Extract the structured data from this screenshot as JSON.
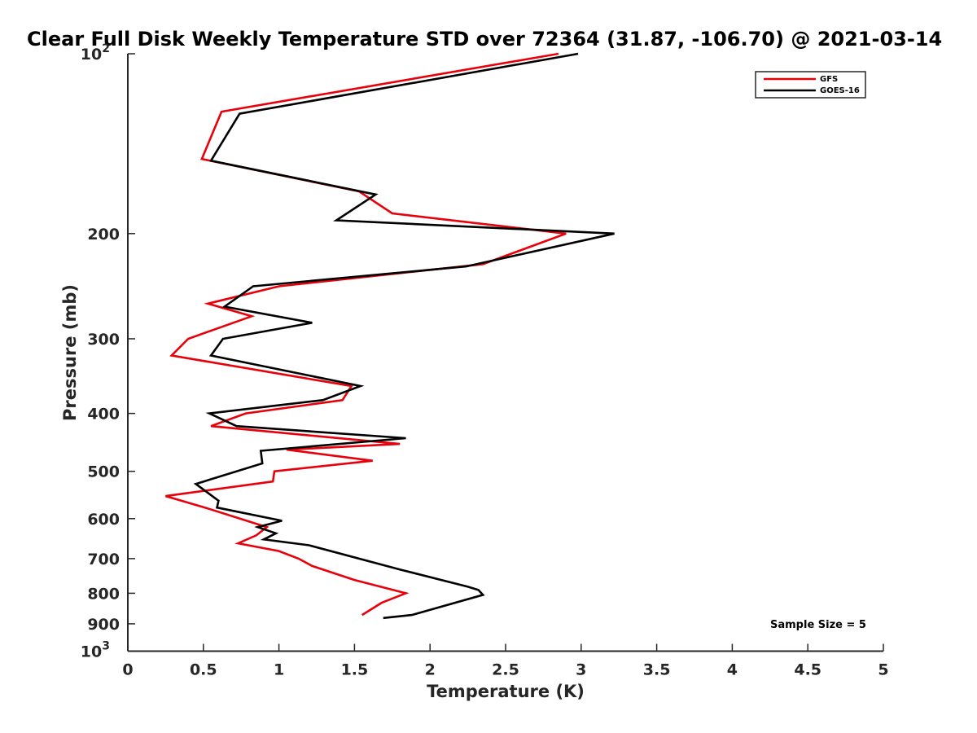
{
  "chart_data": {
    "type": "line",
    "title": "Clear Full Disk Weekly Temperature STD over 72364 (31.87, -106.70) @ 2021-03-14",
    "xlabel": "Temperature (K)",
    "ylabel": "Pressure (mb)",
    "xlim": [
      0,
      5
    ],
    "ylim": [
      100,
      1000
    ],
    "y_scale": "log",
    "y_reversed": true,
    "x_ticks": [
      0,
      0.5,
      1,
      1.5,
      2,
      2.5,
      3,
      3.5,
      4,
      4.5,
      5
    ],
    "x_tick_labels": [
      "0",
      "0.5",
      "1",
      "1.5",
      "2",
      "2.5",
      "3",
      "3.5",
      "4",
      "4.5",
      "5"
    ],
    "y_ticks": [
      100,
      200,
      300,
      400,
      500,
      600,
      700,
      800,
      900,
      1000
    ],
    "y_tick_labels": [
      "10^2",
      "200",
      "300",
      "400",
      "500",
      "600",
      "700",
      "800",
      "900",
      "10^3"
    ],
    "legend_position": "top-right",
    "annotation": "Sample Size = 5",
    "series": [
      {
        "name": "GFS",
        "color": "#e8000b",
        "points": [
          [
            2.85,
            100
          ],
          [
            0.62,
            125
          ],
          [
            0.49,
            150
          ],
          [
            1.53,
            170
          ],
          [
            1.75,
            185
          ],
          [
            2.9,
            200
          ],
          [
            2.35,
            225
          ],
          [
            1.0,
            245
          ],
          [
            0.53,
            262
          ],
          [
            0.82,
            275
          ],
          [
            0.4,
            300
          ],
          [
            0.29,
            320
          ],
          [
            1.48,
            360
          ],
          [
            1.42,
            380
          ],
          [
            0.78,
            400
          ],
          [
            0.55,
            420
          ],
          [
            1.8,
            450
          ],
          [
            1.05,
            460
          ],
          [
            1.62,
            480
          ],
          [
            0.97,
            500
          ],
          [
            0.96,
            520
          ],
          [
            0.25,
            550
          ],
          [
            0.51,
            575
          ],
          [
            0.92,
            620
          ],
          [
            0.85,
            640
          ],
          [
            0.73,
            660
          ],
          [
            1.0,
            680
          ],
          [
            1.13,
            700
          ],
          [
            1.22,
            720
          ],
          [
            1.5,
            760
          ],
          [
            1.84,
            800
          ],
          [
            1.68,
            830
          ],
          [
            1.55,
            870
          ]
        ]
      },
      {
        "name": "GOES-16",
        "color": "#000000",
        "points": [
          [
            2.98,
            100
          ],
          [
            0.74,
            126
          ],
          [
            0.55,
            151
          ],
          [
            1.64,
            172
          ],
          [
            1.38,
            190
          ],
          [
            3.22,
            200
          ],
          [
            2.24,
            227
          ],
          [
            0.83,
            245
          ],
          [
            0.64,
            265
          ],
          [
            1.22,
            282
          ],
          [
            0.63,
            300
          ],
          [
            0.55,
            320
          ],
          [
            1.54,
            360
          ],
          [
            1.29,
            380
          ],
          [
            0.54,
            400
          ],
          [
            0.72,
            420
          ],
          [
            1.84,
            440
          ],
          [
            0.88,
            462
          ],
          [
            0.89,
            485
          ],
          [
            0.45,
            525
          ],
          [
            0.6,
            560
          ],
          [
            0.59,
            575
          ],
          [
            1.02,
            605
          ],
          [
            0.86,
            620
          ],
          [
            0.98,
            635
          ],
          [
            0.9,
            650
          ],
          [
            1.2,
            665
          ],
          [
            1.8,
            730
          ],
          [
            2.25,
            780
          ],
          [
            2.32,
            790
          ],
          [
            2.35,
            805
          ],
          [
            2.02,
            850
          ],
          [
            1.88,
            870
          ],
          [
            1.69,
            880
          ]
        ]
      }
    ]
  }
}
